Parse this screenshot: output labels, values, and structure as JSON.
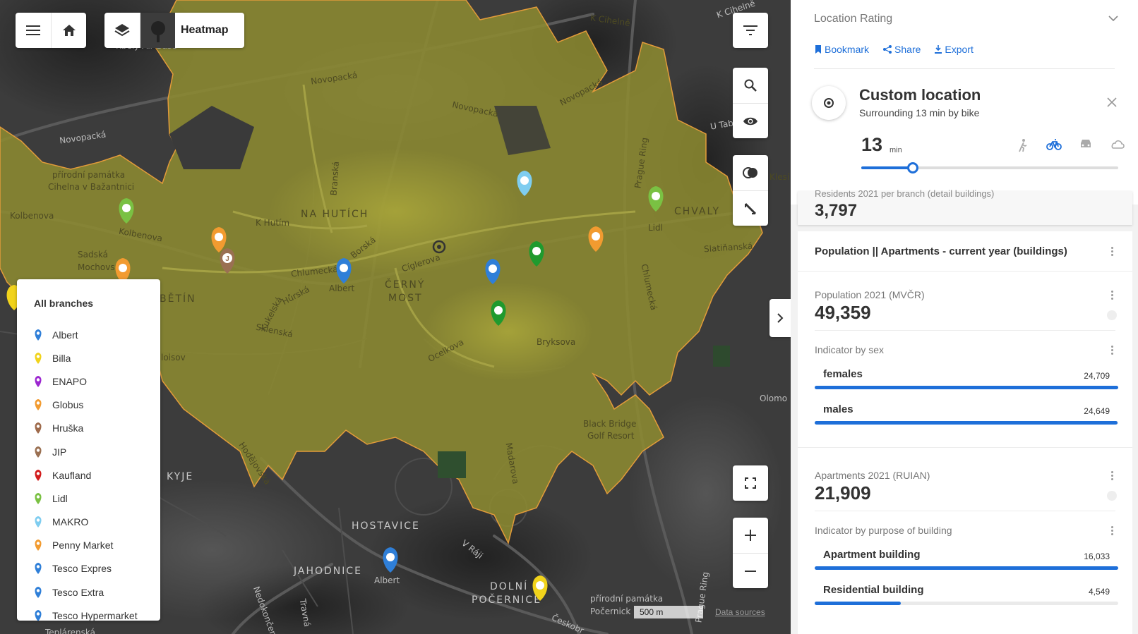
{
  "map": {
    "heatmap_label": "Heatmap",
    "labels": [
      {
        "text": "K Cihelně"
      },
      {
        "text": "Novopacká"
      },
      {
        "text": "Novopacká"
      },
      {
        "text": "Novopacká"
      },
      {
        "text": "Novopacká"
      },
      {
        "text": "přírodní památka"
      },
      {
        "text": "Cihelna v Bažantnici"
      },
      {
        "text": "Kolbenova"
      },
      {
        "text": "Kolbenova"
      },
      {
        "text": "NA HUTÍCH"
      },
      {
        "text": "K Hutím"
      },
      {
        "text": "Sadská"
      },
      {
        "text": "Mochovs"
      },
      {
        "text": "ČERNÝ"
      },
      {
        "text": "MOST"
      },
      {
        "text": "Chlumecká"
      },
      {
        "text": "Albert"
      },
      {
        "text": "Cíglerova"
      },
      {
        "text": "Hůrská"
      },
      {
        "text": "Kukelská"
      },
      {
        "text": "Sklenská"
      },
      {
        "text": "Ocelkova"
      },
      {
        "text": "Bryksova"
      },
      {
        "text": "Chlumecká"
      },
      {
        "text": "CHVALY"
      },
      {
        "text": "Lidl"
      },
      {
        "text": "Slatiňanská"
      },
      {
        "text": "Prague Ring"
      },
      {
        "text": "Branská"
      },
      {
        "text": "Borská"
      },
      {
        "text": "BĚTÍN"
      },
      {
        "text": "loisov"
      },
      {
        "text": "Black Bridge"
      },
      {
        "text": "Golf Resort"
      },
      {
        "text": "Hodějovská"
      },
      {
        "text": "Madarova"
      },
      {
        "text": "KYJE"
      },
      {
        "text": "HOSTAVICE"
      },
      {
        "text": "JAHODNICE"
      },
      {
        "text": "Albert"
      },
      {
        "text": "V Ráji"
      },
      {
        "text": "DOLNÍ"
      },
      {
        "text": "POČERNICE"
      },
      {
        "text": "přírodní památka"
      },
      {
        "text": "Počernick"
      },
      {
        "text": "Prague Ring"
      },
      {
        "text": "Nedokončen"
      },
      {
        "text": "Travná"
      },
      {
        "text": "Českobr"
      },
      {
        "text": "Olomo"
      },
      {
        "text": "U Tab"
      },
      {
        "text": "Klesí"
      },
      {
        "text": "Kbely Air Base"
      },
      {
        "text": "Teplárenská"
      }
    ],
    "scale": "500 m",
    "data_sources": "Data sources"
  },
  "legend": {
    "title": "All branches",
    "items": [
      {
        "label": "Albert",
        "color": "#2f7fd8"
      },
      {
        "label": "Billa",
        "color": "#f1d31b"
      },
      {
        "label": "ENAPO",
        "color": "#9c27d0"
      },
      {
        "label": "Globus",
        "color": "#f29b30"
      },
      {
        "label": "Hruška",
        "color": "#9e6a4b"
      },
      {
        "label": "JIP",
        "color": "#9a7052"
      },
      {
        "label": "Kaufland",
        "color": "#d21c1c"
      },
      {
        "label": "Lidl",
        "color": "#7ac143"
      },
      {
        "label": "MAKRO",
        "color": "#7fcdf0"
      },
      {
        "label": "Penny Market",
        "color": "#f29b30"
      },
      {
        "label": "Tesco Expres",
        "color": "#2f7fd8"
      },
      {
        "label": "Tesco Extra",
        "color": "#2f7fd8"
      },
      {
        "label": "Tesco Hypermarket",
        "color": "#2f7fd8"
      }
    ]
  },
  "sidebar": {
    "header": "Location Rating",
    "actions": {
      "bookmark": "Bookmark",
      "share": "Share",
      "export": "Export"
    },
    "location": {
      "title": "Custom location",
      "subtitle": "Surrounding 13 min by bike",
      "time_value": "13",
      "time_unit": "min",
      "slider_fraction": 0.2
    },
    "prev_card": {
      "label": "Residents 2021 per branch (detail buildings)",
      "value": "3,797"
    },
    "population_card": {
      "title": "Population || Apartments - current year (buildings)",
      "population": {
        "label": "Population 2021 (MVČR)",
        "value": "49,359"
      },
      "sex": {
        "label": "Indicator by sex",
        "rows": [
          {
            "label": "females",
            "value": "24,709",
            "fraction": 1.0
          },
          {
            "label": "males",
            "value": "24,649",
            "fraction": 0.997
          }
        ]
      },
      "apartments": {
        "label": "Apartments 2021 (RUIAN)",
        "value": "21,909"
      },
      "purpose": {
        "label": "Indicator by purpose of building",
        "rows": [
          {
            "label": "Apartment building",
            "value": "16,033",
            "fraction": 1.0
          },
          {
            "label": "Residential building",
            "value": "4,549",
            "fraction": 0.284
          }
        ]
      }
    }
  },
  "colors": {
    "accent": "#1e6fd9",
    "isochrone": "#8e8c30"
  }
}
